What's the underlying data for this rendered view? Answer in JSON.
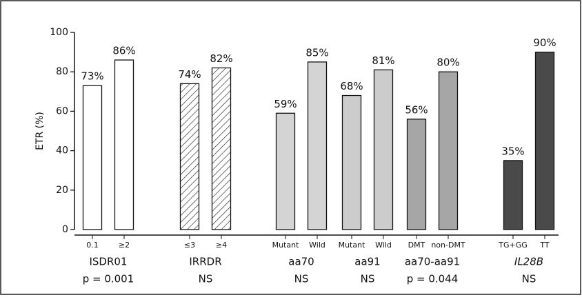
{
  "chart_data": {
    "type": "bar",
    "y_label": "ETR (%)",
    "categories": [
      "0.1",
      "≥2",
      "≤3",
      "≥4",
      "Mutant",
      "Wild",
      "Mutant",
      "Wild",
      "DMT",
      "non-DMT",
      "TG+GG",
      "TT"
    ],
    "values": [
      73,
      86,
      74,
      82,
      59,
      85,
      68,
      81,
      56,
      80,
      35,
      90
    ],
    "value_labels": [
      "73%",
      "86%",
      "74%",
      "82%",
      "59%",
      "85%",
      "68%",
      "81%",
      "56%",
      "80%",
      "35%",
      "90%"
    ],
    "groups": [
      {
        "name": "ISDR01",
        "note": "p = 0.001",
        "color": "#ffffff"
      },
      {
        "name": "IRRDR",
        "note": "NS",
        "color": "#ffffff",
        "pattern": "hatch"
      },
      {
        "name": "aa70",
        "note": "NS",
        "color": "#d4d4d4"
      },
      {
        "name": "aa91",
        "note": "NS",
        "color": "#cccccc"
      },
      {
        "name": "aa70-aa91",
        "note": "p = 0.044",
        "color": "#a6a6a6"
      },
      {
        "name": "IL28B",
        "note": "NS",
        "color": "#4a4a4a",
        "italic": true
      }
    ],
    "ylim": [
      0,
      100
    ],
    "yticks": [
      0,
      20,
      40,
      60,
      80,
      100
    ]
  }
}
